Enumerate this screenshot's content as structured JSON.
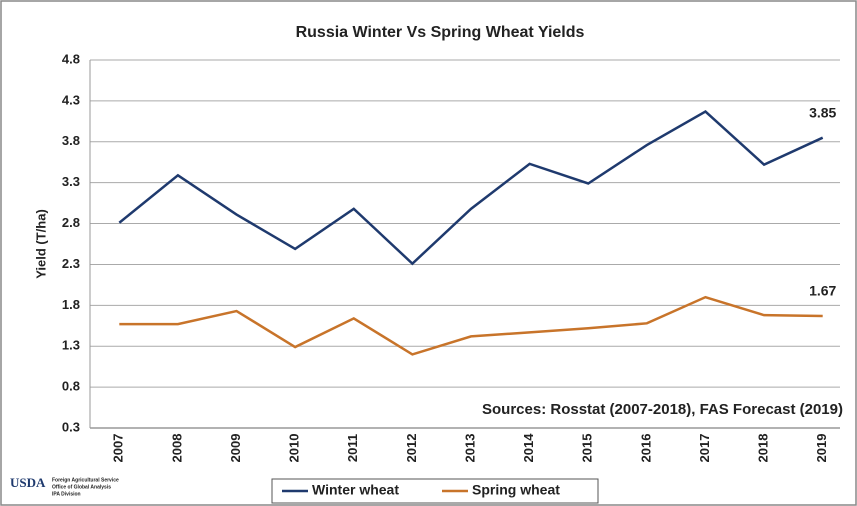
{
  "chart_data": {
    "type": "line",
    "title": "Russia Winter Vs Spring Wheat Yields",
    "y_label": "Yield (T/ha)",
    "annotation": "Sources: Rosstat (2007-2018), FAS Forecast (2019)",
    "categories": [
      "2007",
      "2008",
      "2009",
      "2010",
      "2011",
      "2012",
      "2013",
      "2014",
      "2015",
      "2016",
      "2017",
      "2018",
      "2019"
    ],
    "series": [
      {
        "name": "Winter wheat",
        "color": "#1f3a6e",
        "values": [
          2.81,
          3.39,
          2.91,
          2.49,
          2.98,
          2.31,
          2.98,
          3.53,
          3.29,
          3.76,
          4.17,
          3.52,
          3.85
        ]
      },
      {
        "name": "Spring wheat",
        "color": "#c8742a",
        "values": [
          1.57,
          1.57,
          1.73,
          1.29,
          1.64,
          1.2,
          1.42,
          1.47,
          1.52,
          1.58,
          1.9,
          1.68,
          1.67
        ]
      }
    ],
    "ylim": [
      0.3,
      4.8
    ],
    "yticks": [
      0.3,
      0.8,
      1.3,
      1.8,
      2.3,
      2.8,
      3.3,
      3.8,
      4.3,
      4.8
    ],
    "grid": true,
    "legend": "bottom"
  },
  "logo": {
    "mark": "USDA",
    "lines": [
      "Foreign Agricultural Service",
      "Office of Global Analysis",
      "IPA Division"
    ]
  }
}
